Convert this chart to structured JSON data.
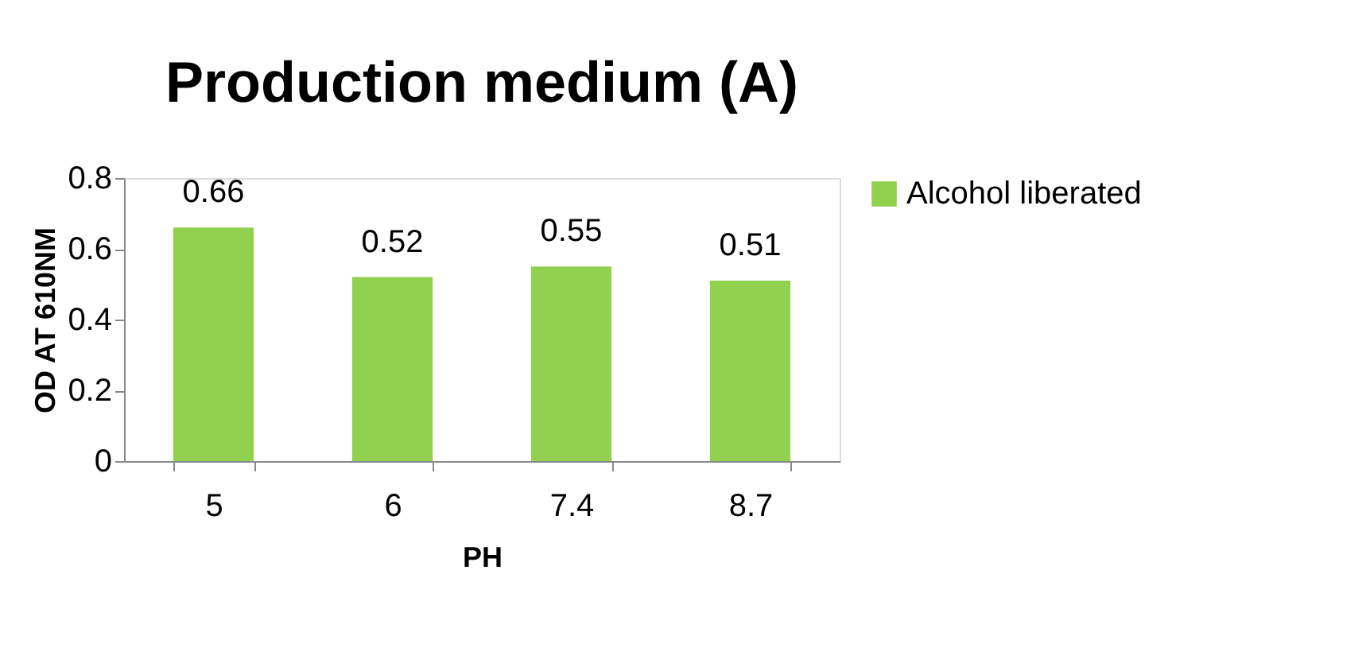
{
  "chart_data": {
    "type": "bar",
    "title": "Production medium (A)",
    "xlabel": "PH",
    "ylabel": "OD AT 610NM",
    "categories": [
      "5",
      "6",
      "7.4",
      "8.7"
    ],
    "series": [
      {
        "name": "Alcohol liberated",
        "color": "#92d050",
        "values": [
          0.66,
          0.52,
          0.55,
          0.51
        ]
      }
    ],
    "ylim": [
      0,
      0.8
    ],
    "yticks": [
      0,
      0.2,
      0.4,
      0.6,
      0.8
    ],
    "data_labels": true,
    "legend": "right",
    "grid": false
  }
}
